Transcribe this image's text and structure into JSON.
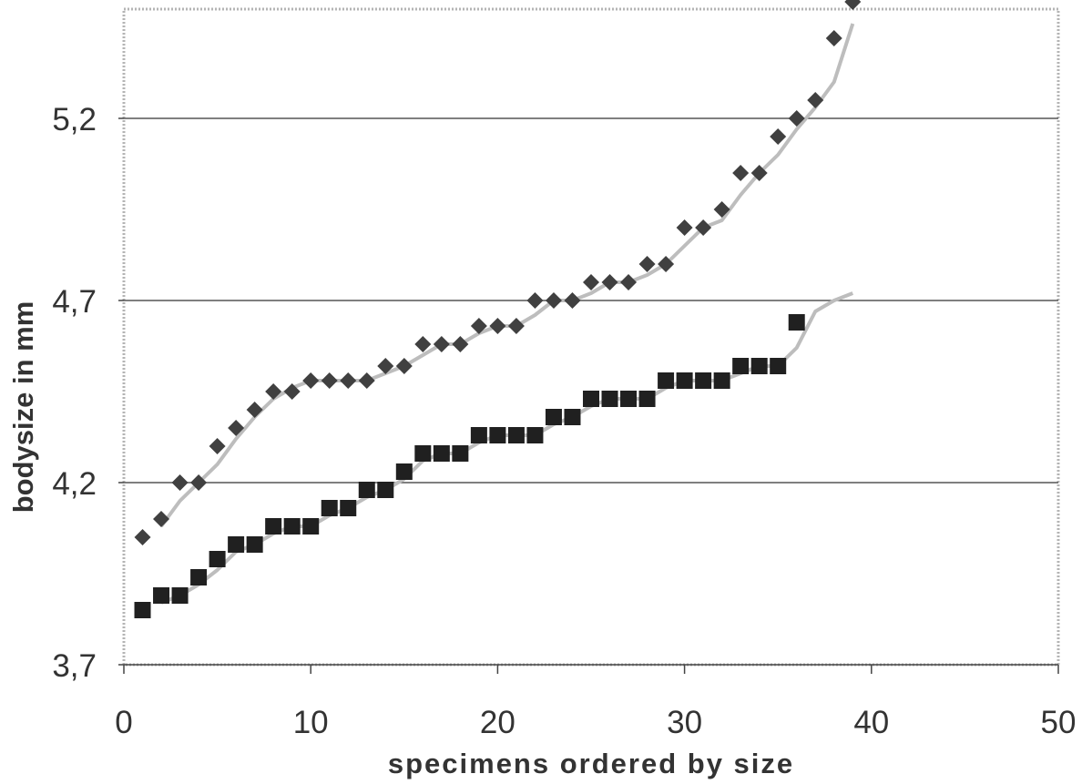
{
  "chart_data": {
    "type": "scatter",
    "title": "",
    "xlabel": "specimens ordered by size",
    "ylabel": "bodysize in mm",
    "xlim": [
      0,
      50
    ],
    "ylim": [
      3.7,
      5.5
    ],
    "x_ticks": [
      0,
      10,
      20,
      30,
      40,
      50
    ],
    "x_tick_labels": [
      "0",
      "10",
      "20",
      "30",
      "40",
      "50"
    ],
    "y_ticks": [
      3.7,
      4.2,
      4.7,
      5.2
    ],
    "y_tick_labels": [
      "3,7",
      "4,2",
      "4,7",
      "5,2"
    ],
    "grid": "horizontal",
    "legend": "none",
    "series": [
      {
        "marker": "diamond",
        "color": "#404040",
        "x": [
          1,
          2,
          3,
          4,
          5,
          6,
          7,
          8,
          9,
          10,
          11,
          12,
          13,
          14,
          15,
          16,
          17,
          18,
          19,
          20,
          21,
          22,
          23,
          24,
          25,
          26,
          27,
          28,
          29,
          30,
          31,
          32,
          33,
          34,
          35,
          36,
          37,
          38,
          39
        ],
        "y": [
          4.05,
          4.1,
          4.2,
          4.2,
          4.3,
          4.35,
          4.4,
          4.45,
          4.45,
          4.48,
          4.48,
          4.48,
          4.48,
          4.52,
          4.52,
          4.58,
          4.58,
          4.58,
          4.63,
          4.63,
          4.63,
          4.7,
          4.7,
          4.7,
          4.75,
          4.75,
          4.75,
          4.8,
          4.8,
          4.9,
          4.9,
          4.95,
          5.05,
          5.05,
          5.15,
          5.2,
          5.25,
          5.42,
          5.52
        ]
      },
      {
        "marker": "square",
        "color": "#202020",
        "x": [
          1,
          2,
          3,
          4,
          5,
          6,
          7,
          8,
          9,
          10,
          11,
          12,
          13,
          14,
          15,
          16,
          17,
          18,
          19,
          20,
          21,
          22,
          23,
          24,
          25,
          26,
          27,
          28,
          29,
          30,
          31,
          32,
          33,
          34,
          35,
          36
        ],
        "y": [
          3.85,
          3.89,
          3.89,
          3.94,
          3.99,
          4.03,
          4.03,
          4.08,
          4.08,
          4.08,
          4.13,
          4.13,
          4.18,
          4.18,
          4.23,
          4.28,
          4.28,
          4.28,
          4.33,
          4.33,
          4.33,
          4.33,
          4.38,
          4.38,
          4.43,
          4.43,
          4.43,
          4.43,
          4.48,
          4.48,
          4.48,
          4.48,
          4.52,
          4.52,
          4.52,
          4.64
        ]
      }
    ],
    "trend_lines": [
      {
        "color": "#bdbdbd",
        "x": [
          2,
          3,
          4,
          5,
          6,
          7,
          8,
          9,
          10,
          11,
          12,
          13,
          14,
          15,
          16,
          17,
          18,
          19,
          20,
          21,
          22,
          23,
          24,
          25,
          26,
          27,
          28,
          29,
          30,
          31,
          32,
          33,
          34,
          35,
          36,
          37,
          38,
          39
        ],
        "y": [
          4.08,
          4.15,
          4.2,
          4.25,
          4.32,
          4.38,
          4.43,
          4.46,
          4.48,
          4.48,
          4.48,
          4.48,
          4.5,
          4.52,
          4.55,
          4.58,
          4.58,
          4.61,
          4.63,
          4.63,
          4.66,
          4.7,
          4.7,
          4.72,
          4.75,
          4.75,
          4.77,
          4.8,
          4.85,
          4.9,
          4.92,
          4.99,
          5.05,
          5.1,
          5.17,
          5.23,
          5.3,
          5.46
        ]
      },
      {
        "color": "#bdbdbd",
        "x": [
          2,
          3,
          4,
          5,
          6,
          7,
          8,
          9,
          10,
          11,
          12,
          13,
          14,
          15,
          16,
          17,
          18,
          19,
          20,
          21,
          22,
          23,
          24,
          25,
          26,
          27,
          28,
          29,
          30,
          31,
          32,
          33,
          34,
          35,
          36,
          37,
          38,
          39
        ],
        "y": [
          3.87,
          3.89,
          3.92,
          3.96,
          4.01,
          4.03,
          4.06,
          4.08,
          4.08,
          4.11,
          4.13,
          4.16,
          4.18,
          4.21,
          4.26,
          4.28,
          4.28,
          4.31,
          4.33,
          4.33,
          4.33,
          4.36,
          4.38,
          4.41,
          4.43,
          4.43,
          4.43,
          4.46,
          4.48,
          4.48,
          4.48,
          4.5,
          4.52,
          4.52,
          4.57,
          4.67,
          4.7,
          4.72
        ]
      }
    ]
  }
}
